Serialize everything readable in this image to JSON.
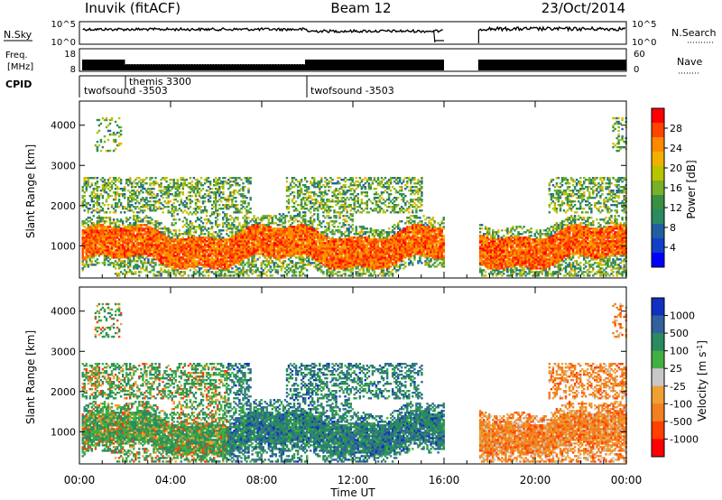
{
  "header": {
    "station": "Inuvik (fitACF)",
    "beam": "Beam 12",
    "date": "23/Oct/2014"
  },
  "top_panels": {
    "nsky_label": "N.Sky",
    "nsky_ticks": [
      "10^5",
      "10^0"
    ],
    "nsearch_label": "N.Search",
    "nsearch_ticks": [
      "10^5",
      "10^0"
    ],
    "freq_label_1": "Freq.",
    "freq_label_2": "[MHz]",
    "freq_ticks": [
      "18",
      "8"
    ],
    "nave_label": "Nave",
    "nave_ticks": [
      "60",
      "0"
    ],
    "cpid_label": "CPID",
    "cpid_entries": [
      "twofsound -3503",
      "themis 3300",
      "twofsound -3503"
    ]
  },
  "chart_data": [
    {
      "type": "heatmap",
      "title": "",
      "ylabel": "Slant Range [km]",
      "xlabel": "",
      "ylim": [
        200,
        4600
      ],
      "yticks": [
        1000,
        2000,
        3000,
        4000
      ],
      "xlim_hours": [
        0,
        24
      ],
      "colorbar": {
        "label": "Power [dB]",
        "ticks": [
          "28",
          "24",
          "20",
          "16",
          "12",
          "8",
          "4"
        ],
        "colors": [
          "#ff0000",
          "#ff4400",
          "#ff8800",
          "#f0b000",
          "#b8c400",
          "#78b028",
          "#389040",
          "#2a8a60",
          "#2060a0",
          "#1040c8",
          "#0000ff"
        ]
      },
      "data_gap_hours": [
        16,
        17.5
      ]
    },
    {
      "type": "heatmap",
      "title": "",
      "ylabel": "Slant Range [km]",
      "xlabel": "Time UT",
      "ylim": [
        200,
        4600
      ],
      "yticks": [
        1000,
        2000,
        3000,
        4000
      ],
      "xlim_hours": [
        0,
        24
      ],
      "xticks": [
        "00:00",
        "04:00",
        "08:00",
        "12:00",
        "16:00",
        "20:00",
        "00:00"
      ],
      "colorbar": {
        "label": "Velocity [m s",
        "label_sup": "-1",
        "label_end": "]",
        "ticks": [
          "1000",
          "500",
          "100",
          "25",
          "-25",
          "-100",
          "-500",
          "-1000"
        ],
        "colors": [
          "#1030c0",
          "#3060a0",
          "#2a8a60",
          "#40b040",
          "#c8c8c8",
          "#f0a030",
          "#f08020",
          "#ff4000",
          "#ff0000"
        ]
      },
      "data_gap_hours": [
        16,
        17.5
      ]
    }
  ]
}
